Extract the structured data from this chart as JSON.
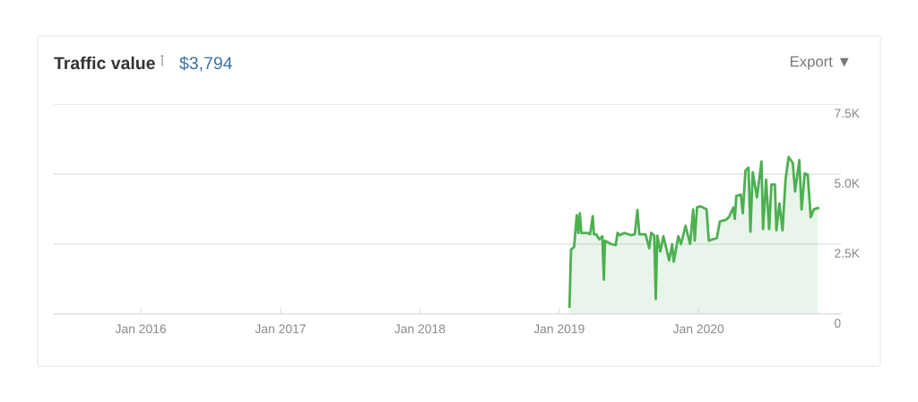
{
  "chart_data": {
    "type": "area",
    "title": "Traffic value",
    "subtitle": "$3,794",
    "annotations": [
      "Export ▼"
    ],
    "x": [
      "2019-01-28",
      "2019-02-01",
      "2019-02-09",
      "2019-02-12",
      "2019-02-16",
      "2019-02-20",
      "2019-02-24",
      "2019-02-28",
      "2019-03-16",
      "2019-03-23",
      "2019-03-30",
      "2019-04-02",
      "2019-04-08",
      "2019-04-16",
      "2019-04-24",
      "2019-04-28",
      "2019-05-01",
      "2019-05-17",
      "2019-05-29",
      "2019-06-03",
      "2019-06-09",
      "2019-06-21",
      "2019-07-07",
      "2019-07-18",
      "2019-07-25",
      "2019-07-30",
      "2019-08-15",
      "2019-08-25",
      "2019-08-30",
      "2019-09-07",
      "2019-09-11",
      "2019-09-15",
      "2019-09-23",
      "2019-10-01",
      "2019-10-16",
      "2019-10-24",
      "2019-10-28",
      "2019-11-09",
      "2019-11-16",
      "2019-11-28",
      "2019-12-10",
      "2019-12-18",
      "2019-12-22",
      "2019-12-28",
      "2020-01-06",
      "2020-01-22",
      "2020-01-28",
      "2020-02-18",
      "2020-02-26",
      "2020-03-13",
      "2020-03-21",
      "2020-04-01",
      "2020-04-05",
      "2020-04-09",
      "2020-04-21",
      "2020-04-26",
      "2020-05-03",
      "2020-05-11",
      "2020-05-16",
      "2020-05-22",
      "2020-06-02",
      "2020-06-14",
      "2020-06-18",
      "2020-06-26",
      "2020-07-04",
      "2020-07-10",
      "2020-07-19",
      "2020-07-23",
      "2020-07-31",
      "2020-08-08",
      "2020-08-16",
      "2020-08-24",
      "2020-09-04",
      "2020-09-10",
      "2020-09-21",
      "2020-09-27",
      "2020-10-05",
      "2020-10-13",
      "2020-10-21",
      "2020-10-29",
      "2020-11-09"
    ],
    "series": [
      {
        "color": "#4cb050",
        "values": [
          270,
          2300,
          2400,
          2880,
          3530,
          2900,
          3600,
          2900,
          2900,
          2850,
          3500,
          2850,
          2850,
          2670,
          2780,
          1230,
          2620,
          2500,
          2460,
          2900,
          2820,
          2900,
          2820,
          2850,
          3720,
          2850,
          2850,
          2350,
          2900,
          2800,
          540,
          2800,
          2240,
          2780,
          1920,
          2500,
          1870,
          2780,
          2500,
          3150,
          2500,
          3740,
          2620,
          3810,
          3850,
          3740,
          2620,
          2720,
          3310,
          3370,
          3470,
          3800,
          3400,
          4220,
          4270,
          3600,
          5130,
          5230,
          2940,
          5070,
          4170,
          5450,
          3040,
          4800,
          3040,
          4630,
          4630,
          2990,
          3950,
          2990,
          4800,
          5610,
          5400,
          4380,
          5500,
          3740,
          5020,
          4980,
          3460,
          3740,
          3790
        ]
      }
    ],
    "xlim": [
      "2015-05-18",
      "2021-01-08"
    ],
    "xticks": [
      {
        "value": "2016-01-01",
        "label": "Jan 2016"
      },
      {
        "value": "2017-01-01",
        "label": "Jan 2017"
      },
      {
        "value": "2018-01-01",
        "label": "Jan 2018"
      },
      {
        "value": "2019-01-01",
        "label": "Jan 2019"
      },
      {
        "value": "2020-01-01",
        "label": "Jan 2020"
      }
    ],
    "ylim": [
      0,
      7500
    ],
    "yticks": [
      0,
      {
        "value": 2500,
        "label": "2.5K"
      },
      {
        "value": 5000,
        "label": "5.0K"
      },
      {
        "value": 7500,
        "label": "7.5K"
      }
    ],
    "grid": "y",
    "legend": false,
    "marker": "none",
    "line_style": "solid"
  }
}
